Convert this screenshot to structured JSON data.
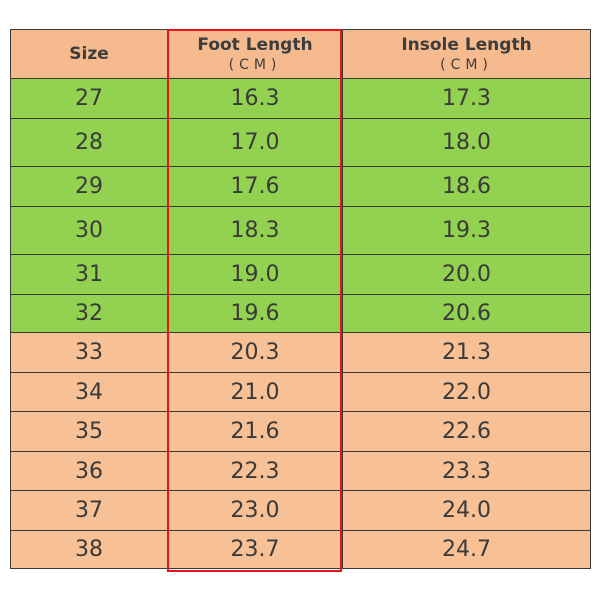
{
  "table": {
    "headers": {
      "size": "Size",
      "foot_length": "Foot Length",
      "foot_length_unit": "(CM)",
      "insole_length": "Insole Length",
      "insole_length_unit": "(CM)"
    },
    "rows": [
      {
        "size": "27",
        "foot": "16.3",
        "insole": "17.3",
        "band": "green"
      },
      {
        "size": "28",
        "foot": "17.0",
        "insole": "18.0",
        "band": "green"
      },
      {
        "size": "29",
        "foot": "17.6",
        "insole": "18.6",
        "band": "green"
      },
      {
        "size": "30",
        "foot": "18.3",
        "insole": "19.3",
        "band": "green"
      },
      {
        "size": "31",
        "foot": "19.0",
        "insole": "20.0",
        "band": "green"
      },
      {
        "size": "32",
        "foot": "19.6",
        "insole": "20.6",
        "band": "green"
      },
      {
        "size": "33",
        "foot": "20.3",
        "insole": "21.3",
        "band": "orange"
      },
      {
        "size": "34",
        "foot": "21.0",
        "insole": "22.0",
        "band": "orange"
      },
      {
        "size": "35",
        "foot": "21.6",
        "insole": "22.6",
        "band": "orange"
      },
      {
        "size": "36",
        "foot": "22.3",
        "insole": "23.3",
        "band": "orange"
      },
      {
        "size": "37",
        "foot": "23.0",
        "insole": "24.0",
        "band": "orange"
      },
      {
        "size": "38",
        "foot": "23.7",
        "insole": "24.7",
        "band": "orange"
      }
    ]
  },
  "colors": {
    "header_bg": "#f5bb8f",
    "green_row": "#93d250",
    "orange_row": "#f7c095",
    "highlight_border": "#e8141a"
  }
}
